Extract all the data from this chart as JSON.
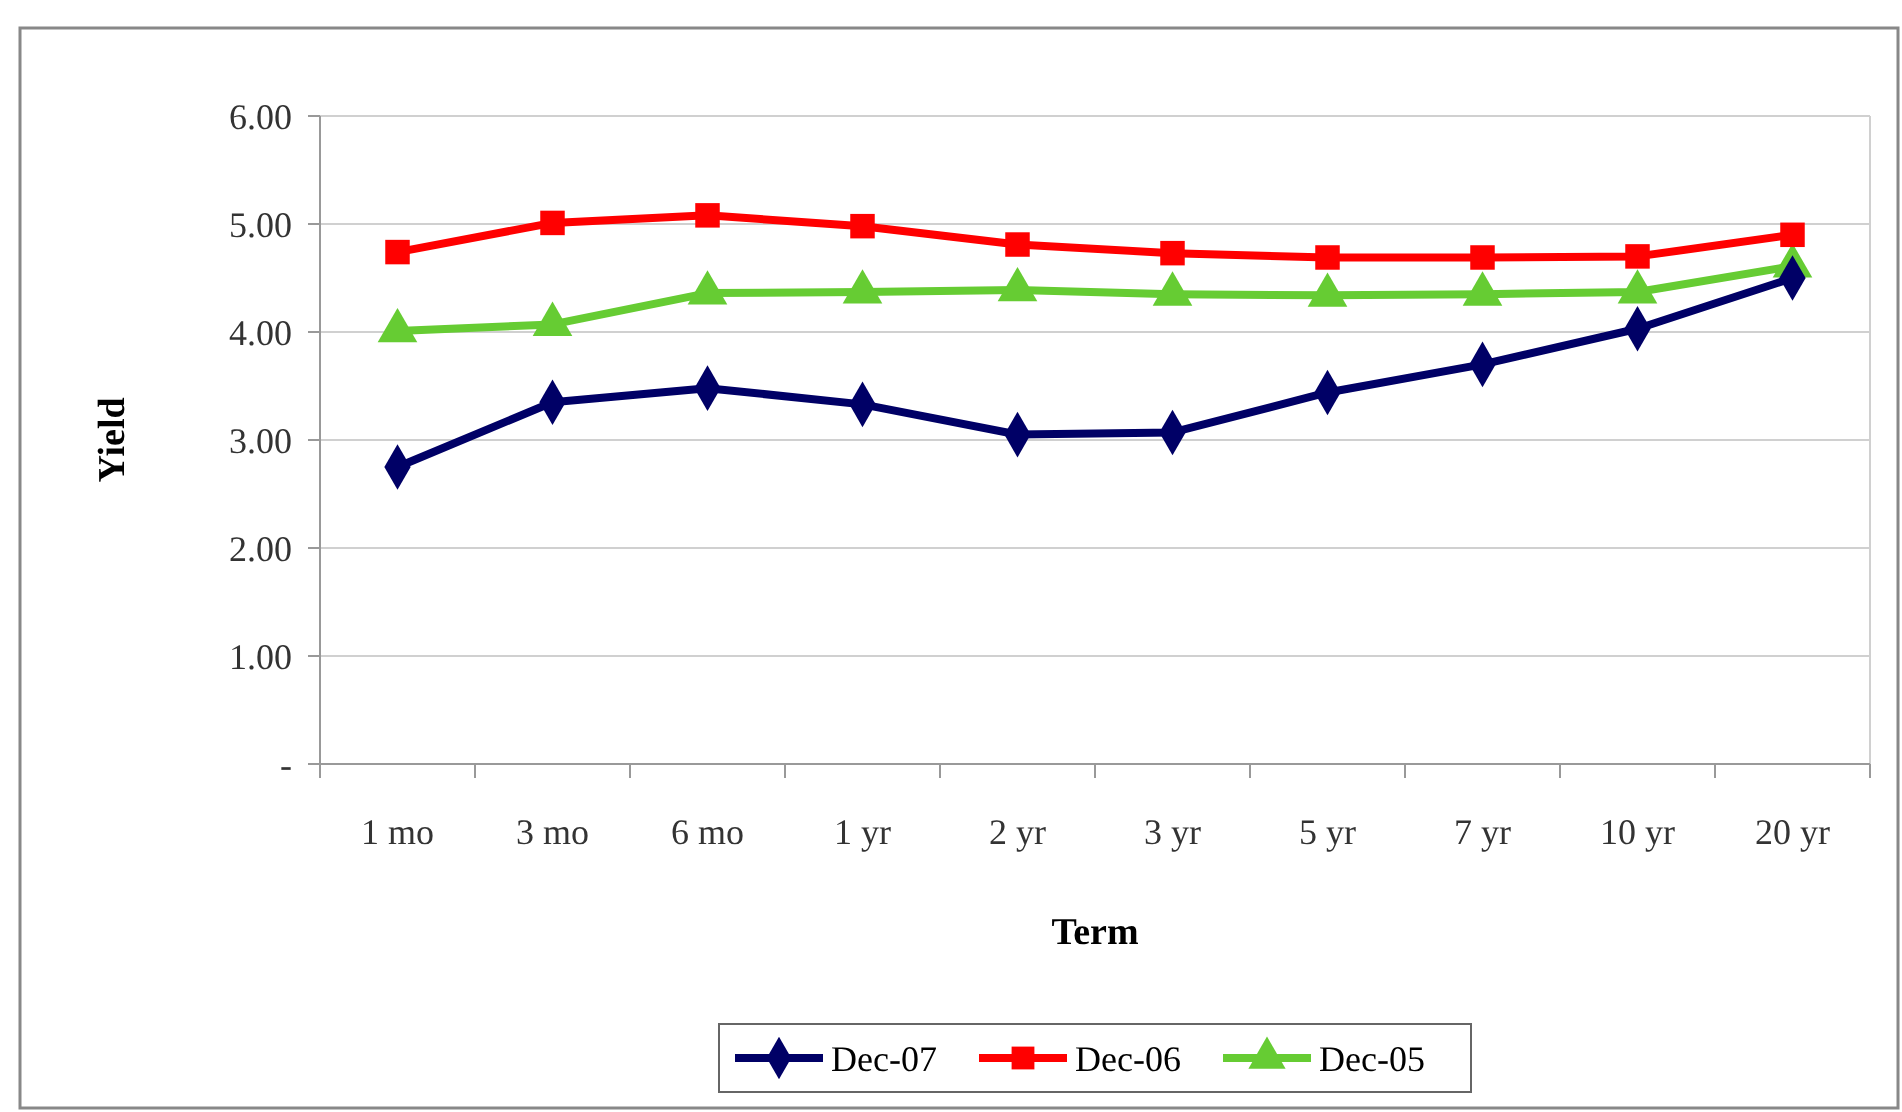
{
  "chart_data": {
    "type": "line",
    "xlabel": "Term",
    "ylabel": "Yield",
    "categories": [
      "1 mo",
      "3 mo",
      "6 mo",
      "1 yr",
      "2 yr",
      "3 yr",
      "5 yr",
      "7 yr",
      "10 yr",
      "20 yr"
    ],
    "series": [
      {
        "name": "Dec-07",
        "color": "#000066",
        "marker": "diamond",
        "values": [
          2.75,
          3.35,
          3.48,
          3.33,
          3.05,
          3.07,
          3.44,
          3.7,
          4.03,
          4.5
        ]
      },
      {
        "name": "Dec-06",
        "color": "#ff0000",
        "marker": "square",
        "values": [
          4.74,
          5.01,
          5.08,
          4.98,
          4.81,
          4.73,
          4.69,
          4.69,
          4.7,
          4.9
        ]
      },
      {
        "name": "Dec-05",
        "color": "#66cc33",
        "marker": "triangle",
        "values": [
          4.01,
          4.07,
          4.36,
          4.37,
          4.39,
          4.35,
          4.34,
          4.35,
          4.37,
          4.61
        ]
      }
    ],
    "ylim": [
      0,
      6
    ],
    "yticks": [
      {
        "value": 0,
        "label": "-"
      },
      {
        "value": 1,
        "label": "1.00"
      },
      {
        "value": 2,
        "label": "2.00"
      },
      {
        "value": 3,
        "label": "3.00"
      },
      {
        "value": 4,
        "label": "4.00"
      },
      {
        "value": 5,
        "label": "5.00"
      },
      {
        "value": 6,
        "label": "6.00"
      }
    ],
    "grid": "y",
    "legend": "bottom",
    "line_style": "solid"
  }
}
